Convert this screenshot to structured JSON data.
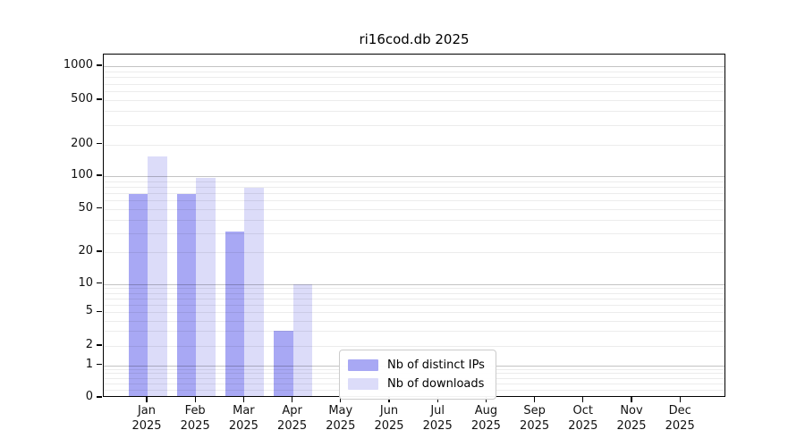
{
  "chart_data": {
    "type": "bar",
    "title": "ri16cod.db 2025",
    "categories": [
      "Jan 2025",
      "Feb 2025",
      "Mar 2025",
      "Apr 2025",
      "May 2025",
      "Jun 2025",
      "Jul 2025",
      "Aug 2025",
      "Sep 2025",
      "Oct 2025",
      "Nov 2025",
      "Dec 2025"
    ],
    "series": [
      {
        "name": "Nb of distinct IPs",
        "color": "#a8a8f4",
        "values": [
          68,
          68,
          31,
          3,
          null,
          null,
          null,
          null,
          null,
          null,
          null,
          null
        ]
      },
      {
        "name": "Nb of downloads",
        "color": "#dcdcf9",
        "values": [
          155,
          97,
          78,
          10,
          null,
          null,
          null,
          null,
          null,
          null,
          null,
          null
        ]
      }
    ],
    "yscale": "log-with-zero",
    "ytick_values": [
      0,
      1,
      2,
      5,
      10,
      20,
      50,
      100,
      200,
      500,
      1000
    ],
    "ytick_labels": [
      "0",
      "1",
      "2",
      "5",
      "10",
      "20",
      "50",
      "100",
      "200",
      "500",
      "1000"
    ],
    "ylim": [
      0,
      1250
    ],
    "xlabel": "",
    "ylabel": "",
    "grid": "horizontal-major-and-log-minor",
    "legend_position": "lower-center",
    "colors": {
      "axis": "#000000",
      "grid_major": "#c3c3c3",
      "grid_minor": "#ececec",
      "background": "#ffffff"
    }
  }
}
